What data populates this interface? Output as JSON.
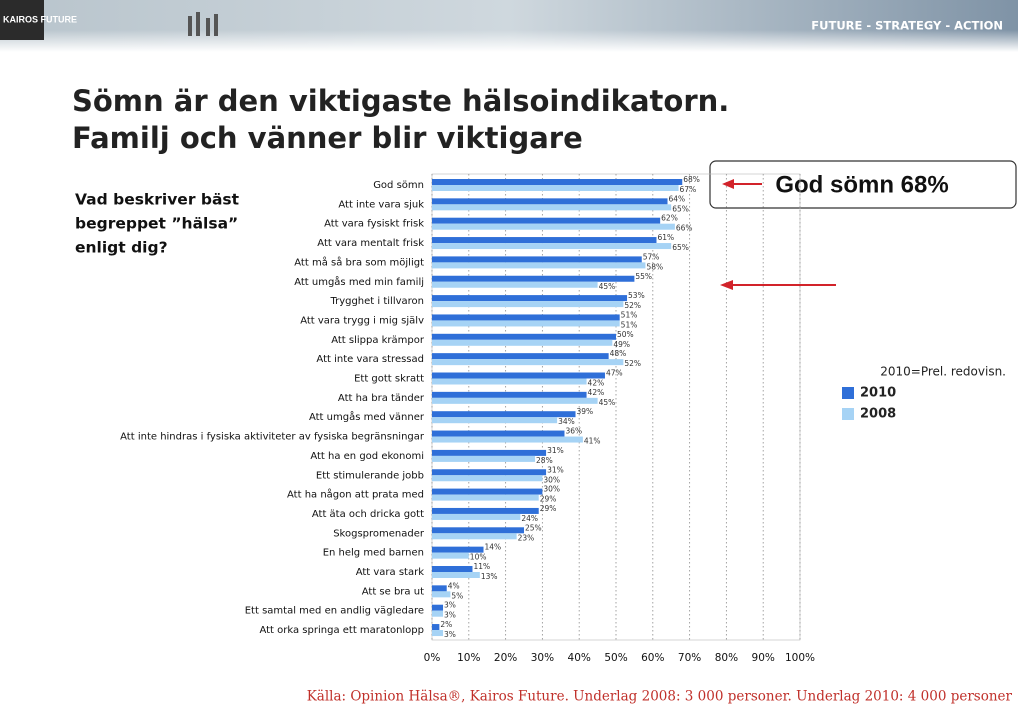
{
  "slide": {
    "logo": "KAIROS FUTURE",
    "tagline": "FUTURE - STRATEGY - ACTION",
    "title_lines": [
      "Sömn är den viktigaste hälsoindikatorn.",
      "Familj och vänner blir viktigare"
    ],
    "question": [
      "Vad beskriver bäst",
      "begreppet ”hälsa”",
      "enligt dig?"
    ],
    "callout": "God sömn 68%",
    "note": "2010=Prel. redovisn.",
    "source": "Källa: Opinion Hälsa®, Kairos Future. Underlag 2008: 3 000 personer. Underlag 2010: 4 000 personer"
  },
  "chart_data": {
    "type": "bar",
    "categories": [
      "God sömn",
      "Att inte vara sjuk",
      "Att vara fysiskt frisk",
      "Att vara mentalt frisk",
      "Att må så bra som möjligt",
      "Att umgås med min familj",
      "Trygghet i tillvaron",
      "Att vara trygg i mig själv",
      "Att slippa krämpor",
      "Att inte vara stressad",
      "Ett gott skratt",
      "Att ha bra tänder",
      "Att umgås med vänner",
      "Att inte hindras i fysiska aktiviteter av fysiska begränsningar",
      "Att ha en god ekonomi",
      "Ett stimulerande jobb",
      "Att ha någon att prata med",
      "Att äta och dricka gott",
      "Skogspromenader",
      "En helg med barnen",
      "Att vara stark",
      "Att se bra ut",
      "Ett samtal med en andlig vägledare",
      "Att orka springa ett maratonlopp"
    ],
    "series": [
      {
        "name": "2010",
        "color": "#2f6fd8",
        "values": [
          68,
          64,
          62,
          61,
          57,
          55,
          53,
          51,
          50,
          48,
          47,
          42,
          39,
          36,
          31,
          31,
          30,
          29,
          25,
          14,
          11,
          4,
          3,
          2
        ],
        "value_labels": [
          "68%",
          "64%",
          "62%",
          "61%",
          "57%",
          "55%",
          "53%",
          "51%",
          "50%",
          "48%",
          "47%",
          "42%",
          "39%",
          "36%",
          "31%",
          "31%",
          "30%",
          "29%",
          "25%",
          "14%",
          "11%",
          "4%",
          "3%",
          "2%"
        ]
      },
      {
        "name": "2008",
        "color": "#a6d3f5",
        "values": [
          67,
          65,
          66,
          65,
          58,
          45,
          52,
          51,
          49,
          52,
          42,
          45,
          34,
          41,
          28,
          30,
          29,
          24,
          23,
          10,
          13,
          5,
          3,
          3
        ],
        "value_labels": [
          "67%",
          "65%",
          "66%",
          "65%",
          "58%",
          "45%",
          "52%",
          "51%",
          "49%",
          "52%",
          "42%",
          "45%",
          "34%",
          "41%",
          "28%",
          "30%",
          "29%",
          "24%",
          "23%",
          "10%",
          "13%",
          "5%",
          "3%",
          "3%"
        ]
      }
    ],
    "xlim": [
      0,
      100
    ],
    "xticks": [
      {
        "value": 0,
        "label": "0%"
      },
      {
        "value": 10,
        "label": "10%"
      },
      {
        "value": 20,
        "label": "20%"
      },
      {
        "value": 30,
        "label": "30%"
      },
      {
        "value": 40,
        "label": "40%"
      },
      {
        "value": 50,
        "label": "50%"
      },
      {
        "value": 60,
        "label": "60%"
      },
      {
        "value": 70,
        "label": "70%"
      },
      {
        "value": 80,
        "label": "80%"
      },
      {
        "value": 90,
        "label": "90%"
      },
      {
        "value": 100,
        "label": "100%"
      }
    ],
    "grid": true
  }
}
